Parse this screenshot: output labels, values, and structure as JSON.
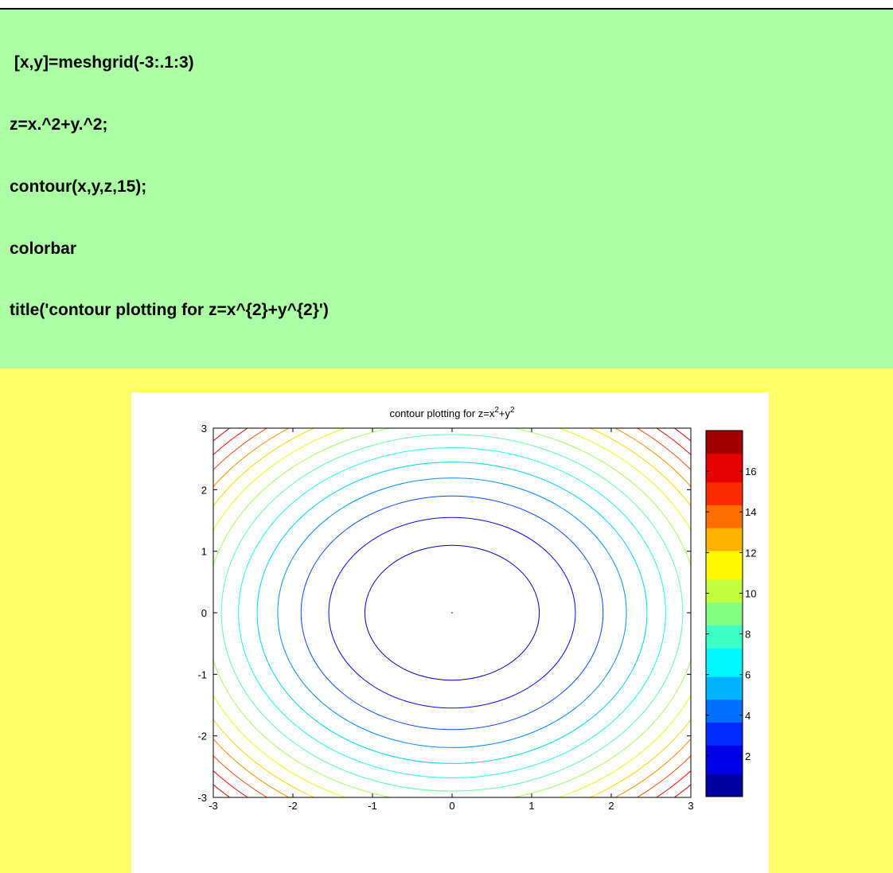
{
  "code": {
    "lines": [
      " [x,y]=meshgrid(-3:.1:3)",
      "z=x.^2+y.^2;",
      "contour(x,y,z,15);",
      "colorbar",
      "title('contour plotting for z=x^{2}+y^{2}')"
    ]
  },
  "colors": {
    "top_background": "#ffffff",
    "code_background": "#adffa6",
    "page_background": "#ffff66",
    "figure_background": "#ffffff"
  },
  "chart_data": {
    "type": "contour",
    "title": "contour plotting for z=x^2+y^2",
    "title_parts": {
      "prefix": "contour plotting for z=x",
      "exp1": "2",
      "middle": "+y",
      "exp2": "2"
    },
    "function": "z=x^2+y^2",
    "levels_count": 15,
    "levels": [
      0,
      1.2,
      2.4,
      3.6,
      4.8,
      6.0,
      7.2,
      8.4,
      9.6,
      10.8,
      12.0,
      13.2,
      14.4,
      15.6,
      16.8
    ],
    "xlim": [
      -3,
      3
    ],
    "ylim": [
      -3,
      3
    ],
    "xticks": [
      -3,
      -2,
      -1,
      0,
      1,
      2,
      3
    ],
    "yticks": [
      3,
      2,
      1,
      0,
      -1,
      -2,
      -3
    ],
    "colorbar": {
      "range": [
        0,
        18
      ],
      "ticks": [
        2,
        4,
        6,
        8,
        10,
        12,
        14,
        16
      ],
      "colormap": "jet"
    },
    "grid": false,
    "legend": "none"
  }
}
